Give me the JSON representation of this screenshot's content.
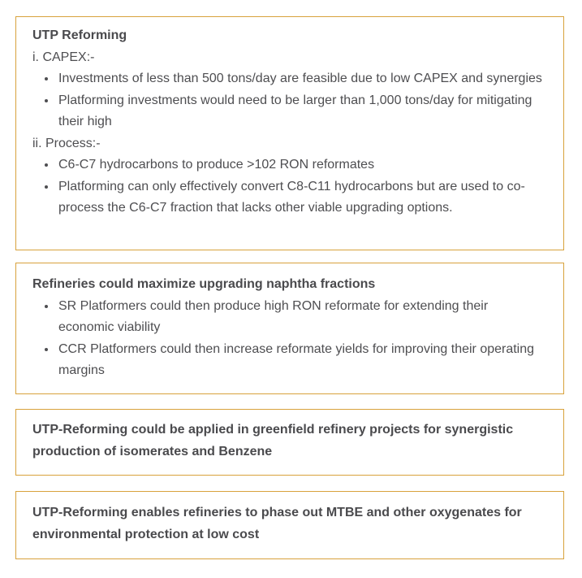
{
  "page": {
    "background_color": "#ffffff",
    "box_border_color": "#d8a23c",
    "text_color": "#4e4e51"
  },
  "boxes": [
    {
      "title": "UTP Reforming",
      "sections": [
        {
          "label": "i. CAPEX:-",
          "bullets": [
            "Investments of less than 500 tons/day are feasible due to low CAPEX and synergies",
            "Platforming investments would need to be larger than 1,000 tons/day for mitigating their high"
          ]
        },
        {
          "label": "ii. Process:-",
          "bullets": [
            "C6-C7 hydrocarbons to produce >102 RON reformates",
            "Platforming can only effectively convert C8-C11 hydrocarbons but are used to co-process the C6-C7 fraction that lacks other viable upgrading options."
          ]
        }
      ]
    },
    {
      "title": "Refineries could maximize upgrading naphtha fractions",
      "bullets": [
        "SR Platformers could then produce high RON reformate for extending their economic viability",
        "CCR Platformers could then increase reformate yields for improving their operating margins"
      ]
    },
    {
      "title": "UTP-Reforming could be applied in greenfield refinery projects for synergistic production of isomerates and Benzene"
    },
    {
      "title": "UTP-Reforming enables refineries to phase out MTBE and other oxygenates for environmental protection at low cost"
    }
  ]
}
